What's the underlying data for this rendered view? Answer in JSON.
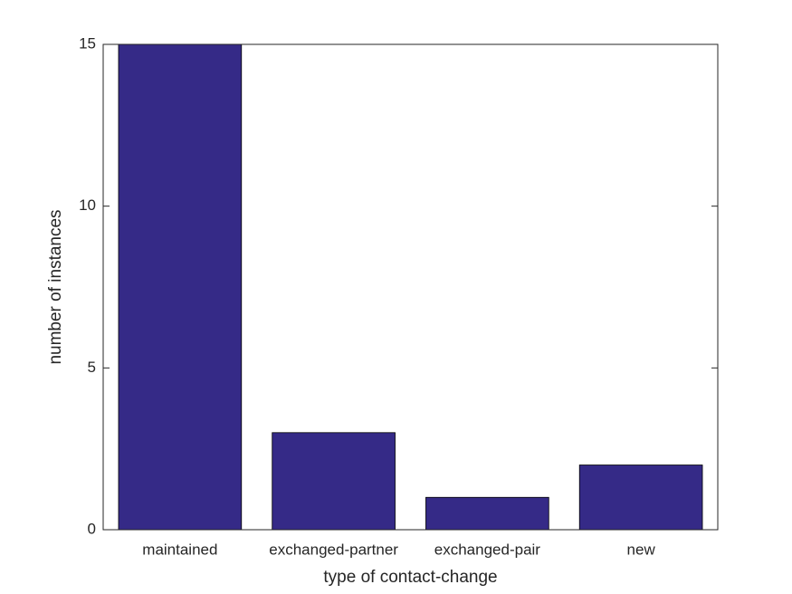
{
  "chart_data": {
    "type": "bar",
    "categories": [
      "maintained",
      "exchanged-partner",
      "exchanged-pair",
      "new"
    ],
    "values": [
      15,
      3,
      1,
      2
    ],
    "color": "#352a87",
    "xlabel": "type of contact-change",
    "ylabel": "number of instances",
    "ylim": [
      0,
      15
    ],
    "yticks": [
      0,
      5,
      10,
      15
    ],
    "grid": false
  }
}
